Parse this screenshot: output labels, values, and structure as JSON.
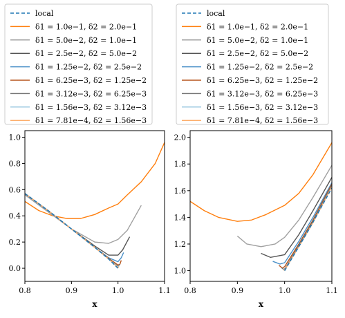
{
  "chart_data": [
    {
      "type": "line",
      "xlabel": "x",
      "ylabel": "",
      "xlim": [
        0.8,
        1.1
      ],
      "ylim": [
        -0.1,
        1.05
      ],
      "xticks": [
        "0.8",
        "0.9",
        "1.0",
        "1.1"
      ],
      "yticks": [
        "0.0",
        "0.2",
        "0.4",
        "0.6",
        "0.8",
        "1.0"
      ],
      "legend": "above-plot",
      "series": [
        {
          "name": "local",
          "style": "dashed",
          "color": "#1f77b4",
          "x": [
            0.8,
            0.85,
            0.9,
            0.95,
            0.98,
            1.0
          ],
          "y": [
            0.57,
            0.44,
            0.3,
            0.16,
            0.07,
            0.0
          ]
        },
        {
          "name": "δ1 = 1.0e−1, δ2 = 2.0e−1",
          "style": "solid",
          "color": "#ff7f0e",
          "x": [
            0.8,
            0.83,
            0.86,
            0.89,
            0.92,
            0.95,
            0.98,
            1.0,
            1.02,
            1.05,
            1.08,
            1.1
          ],
          "y": [
            0.51,
            0.44,
            0.4,
            0.38,
            0.38,
            0.41,
            0.46,
            0.49,
            0.56,
            0.66,
            0.8,
            0.96
          ]
        },
        {
          "name": "δ1 = 5.0e−2, δ2 = 1.0e−1",
          "style": "solid",
          "color": "#a0a0a0",
          "x": [
            0.8,
            0.85,
            0.9,
            0.95,
            0.98,
            1.0,
            1.02,
            1.05
          ],
          "y": [
            0.56,
            0.43,
            0.3,
            0.2,
            0.19,
            0.22,
            0.29,
            0.48
          ]
        },
        {
          "name": "δ1 = 2.5e−2, δ2 = 5.0e−2",
          "style": "solid",
          "color": "#555555",
          "x": [
            0.8,
            0.85,
            0.9,
            0.95,
            0.98,
            1.0,
            1.01,
            1.025
          ],
          "y": [
            0.57,
            0.44,
            0.3,
            0.17,
            0.1,
            0.1,
            0.14,
            0.24
          ]
        },
        {
          "name": "δ1 = 1.25e−2, δ2 = 2.5e−2",
          "style": "solid",
          "color": "#4a90c8",
          "x": [
            0.8,
            0.85,
            0.9,
            0.95,
            0.98,
            1.0,
            1.007,
            1.012
          ],
          "y": [
            0.57,
            0.44,
            0.3,
            0.16,
            0.08,
            0.05,
            0.08,
            0.12
          ]
        },
        {
          "name": "δ1 = 6.25e−3, δ2 = 1.25e−2",
          "style": "solid",
          "color": "#b5541b",
          "x": [
            0.8,
            0.85,
            0.9,
            0.95,
            0.98,
            1.0,
            1.004,
            1.007
          ],
          "y": [
            0.57,
            0.44,
            0.3,
            0.16,
            0.075,
            0.025,
            0.03,
            0.06
          ]
        },
        {
          "name": "δ1 = 3.12e−3, δ2 = 6.25e−3",
          "style": "solid",
          "color": "#707070",
          "x": [
            0.8,
            0.85,
            0.9,
            0.95,
            0.98,
            1.0,
            1.004
          ],
          "y": [
            0.57,
            0.44,
            0.3,
            0.16,
            0.07,
            0.015,
            0.03
          ]
        },
        {
          "name": "δ1 = 1.56e−3, δ2 = 3.12e−3",
          "style": "solid",
          "color": "#9ecae1",
          "x": [
            0.8,
            0.85,
            0.9,
            0.95,
            0.98,
            1.0,
            1.003
          ],
          "y": [
            0.57,
            0.44,
            0.3,
            0.16,
            0.07,
            0.01,
            0.02
          ]
        },
        {
          "name": "δ1 = 7.81e−4, δ2 = 1.56e−3",
          "style": "solid",
          "color": "#fdae6b",
          "x": [
            0.8,
            0.85,
            0.9,
            0.95,
            0.98,
            1.0,
            1.002
          ],
          "y": [
            0.57,
            0.44,
            0.3,
            0.16,
            0.07,
            0.005,
            0.012
          ]
        }
      ]
    },
    {
      "type": "line",
      "xlabel": "x",
      "ylabel": "",
      "xlim": [
        0.8,
        1.1
      ],
      "ylim": [
        0.92,
        2.05
      ],
      "xticks": [
        "0.8",
        "0.9",
        "1.0",
        "1.1"
      ],
      "yticks": [
        "1.0",
        "1.2",
        "1.4",
        "1.6",
        "1.8",
        "2.0"
      ],
      "legend": "above-plot",
      "series": [
        {
          "name": "local",
          "style": "dashed",
          "color": "#1f77b4",
          "x": [
            1.0,
            1.05,
            1.1
          ],
          "y": [
            1.0,
            1.3,
            1.62
          ]
        },
        {
          "name": "δ1 = 1.0e−1, δ2 = 2.0e−1",
          "style": "solid",
          "color": "#ff7f0e",
          "x": [
            0.8,
            0.83,
            0.86,
            0.9,
            0.93,
            0.96,
            1.0,
            1.03,
            1.06,
            1.1
          ],
          "y": [
            1.52,
            1.45,
            1.4,
            1.37,
            1.38,
            1.42,
            1.49,
            1.58,
            1.72,
            1.96
          ]
        },
        {
          "name": "δ1 = 5.0e−2, δ2 = 1.0e−1",
          "style": "solid",
          "color": "#a0a0a0",
          "x": [
            0.9,
            0.92,
            0.95,
            0.98,
            1.0,
            1.03,
            1.06,
            1.1
          ],
          "y": [
            1.26,
            1.2,
            1.18,
            1.2,
            1.25,
            1.38,
            1.55,
            1.79
          ]
        },
        {
          "name": "δ1 = 2.5e−2, δ2 = 5.0e−2",
          "style": "solid",
          "color": "#555555",
          "x": [
            0.95,
            0.97,
            1.0,
            1.03,
            1.06,
            1.1
          ],
          "y": [
            1.13,
            1.1,
            1.12,
            1.27,
            1.45,
            1.7
          ]
        },
        {
          "name": "δ1 = 1.25e−2, δ2 = 2.5e−2",
          "style": "solid",
          "color": "#4a90c8",
          "x": [
            0.975,
            0.99,
            1.0,
            1.03,
            1.06,
            1.1
          ],
          "y": [
            1.07,
            1.05,
            1.06,
            1.22,
            1.4,
            1.66
          ]
        },
        {
          "name": "δ1 = 6.25e−3, δ2 = 1.25e−2",
          "style": "solid",
          "color": "#b5541b",
          "x": [
            0.988,
            0.995,
            1.0,
            1.03,
            1.06,
            1.1
          ],
          "y": [
            1.04,
            1.02,
            1.03,
            1.2,
            1.38,
            1.65
          ]
        },
        {
          "name": "δ1 = 3.12e−3, δ2 = 6.25e−3",
          "style": "solid",
          "color": "#707070",
          "x": [
            0.994,
            0.998,
            1.001,
            1.03,
            1.06,
            1.1
          ],
          "y": [
            1.02,
            1.01,
            1.015,
            1.19,
            1.37,
            1.64
          ]
        },
        {
          "name": "δ1 = 1.56e−3, δ2 = 3.12e−3",
          "style": "solid",
          "color": "#9ecae1",
          "x": [
            0.997,
            0.999,
            1.001,
            1.03,
            1.06,
            1.1
          ],
          "y": [
            1.01,
            1.005,
            1.008,
            1.18,
            1.36,
            1.63
          ]
        },
        {
          "name": "δ1 = 7.81e−4, δ2 = 1.56e−3",
          "style": "solid",
          "color": "#fdae6b",
          "x": [
            0.998,
            1.0,
            1.03,
            1.06,
            1.1
          ],
          "y": [
            1.005,
            1.003,
            1.18,
            1.36,
            1.63
          ]
        }
      ]
    }
  ]
}
